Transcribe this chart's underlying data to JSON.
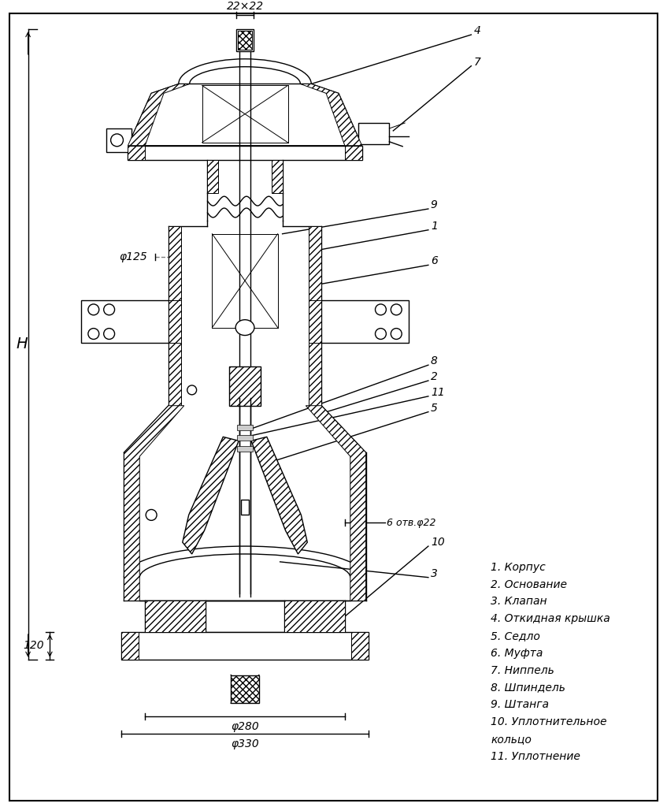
{
  "bg_color": "#ffffff",
  "part_labels": [
    "1. Корпус",
    "2. Основание",
    "3. Клапан",
    "4. Откидная крышка",
    "5. Седло",
    "6. Муфта",
    "7. Ниппель",
    "8. Шпиндель",
    "9. Штанга",
    "10. Уплотнительное",
    "кольцо",
    "11. Уплотнение"
  ],
  "dim_22x22": "22×22",
  "dim_phi125": "φ125",
  "dim_6otv_phi22": "6 отв.φ22",
  "dim_phi280": "φ280",
  "dim_phi330": "φ330",
  "dim_H": "H",
  "dim_120": "120"
}
